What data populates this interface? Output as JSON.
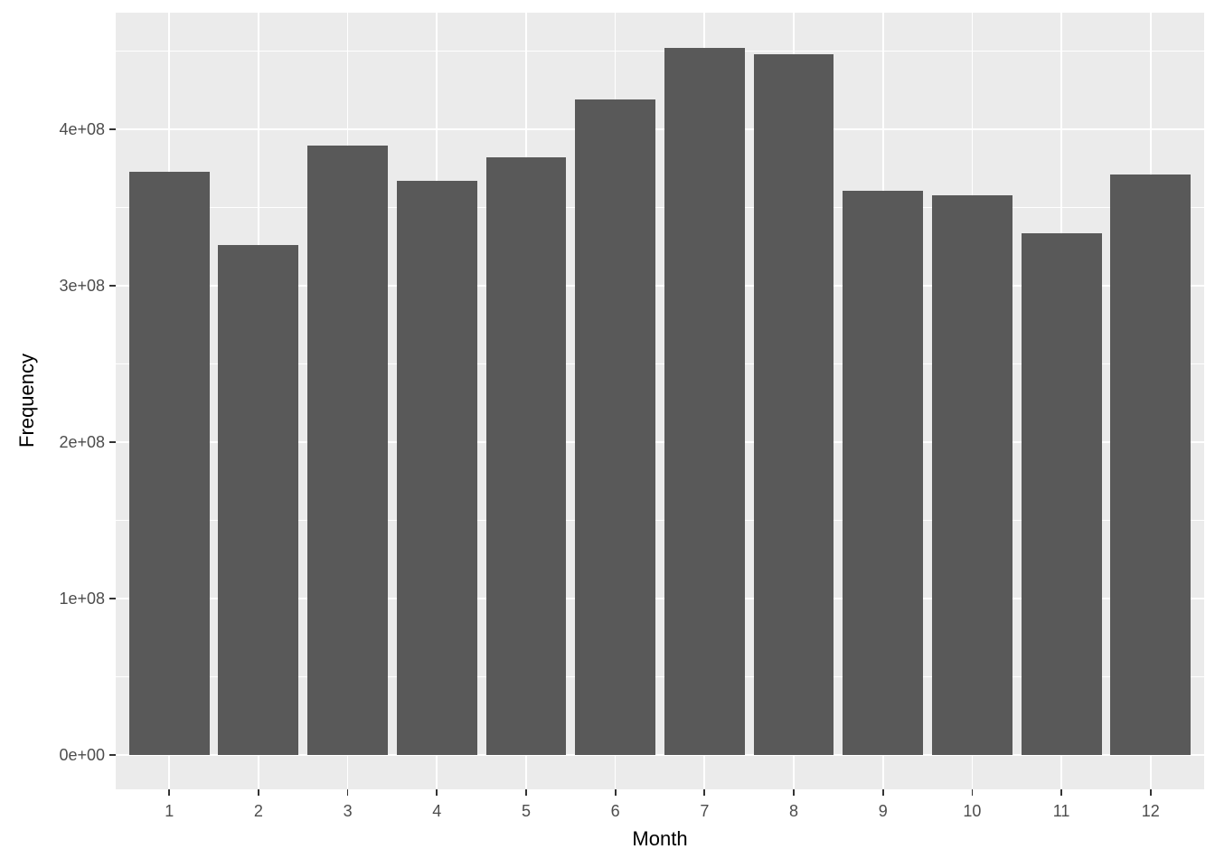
{
  "chart_data": {
    "type": "bar",
    "title": "",
    "xlabel": "Month",
    "ylabel": "Frequency",
    "categories": [
      "1",
      "2",
      "3",
      "4",
      "5",
      "6",
      "7",
      "8",
      "9",
      "10",
      "11",
      "12"
    ],
    "values": [
      373000000,
      326000000,
      390000000,
      367000000,
      382000000,
      419000000,
      452000000,
      448000000,
      361000000,
      358000000,
      333500000,
      371000000
    ],
    "series_name": "Frequency",
    "y_ticks": [
      {
        "value": 0,
        "label": "0e+00"
      },
      {
        "value": 100000000,
        "label": "1e+08"
      },
      {
        "value": 200000000,
        "label": "2e+08"
      },
      {
        "value": 300000000,
        "label": "3e+08"
      },
      {
        "value": 400000000,
        "label": "4e+08"
      }
    ],
    "y_minor_ticks": [
      50000000,
      150000000,
      250000000,
      350000000,
      450000000
    ],
    "ylim": [
      -22000000,
      474800000
    ],
    "x_expand": [
      0.4,
      12.6
    ],
    "bar_width_fraction": 0.9,
    "grid": "white major+minor horizontal, major vertical at categories",
    "legend": "none"
  },
  "style": {
    "background": "#FFFFFF",
    "panel_bg": "#EBEBEB",
    "grid_color": "#FFFFFF",
    "bar_fill": "#595959",
    "tick_mark_color": "#333333",
    "tick_label_color": "#4D4D4D",
    "axis_title_color": "#000000"
  }
}
